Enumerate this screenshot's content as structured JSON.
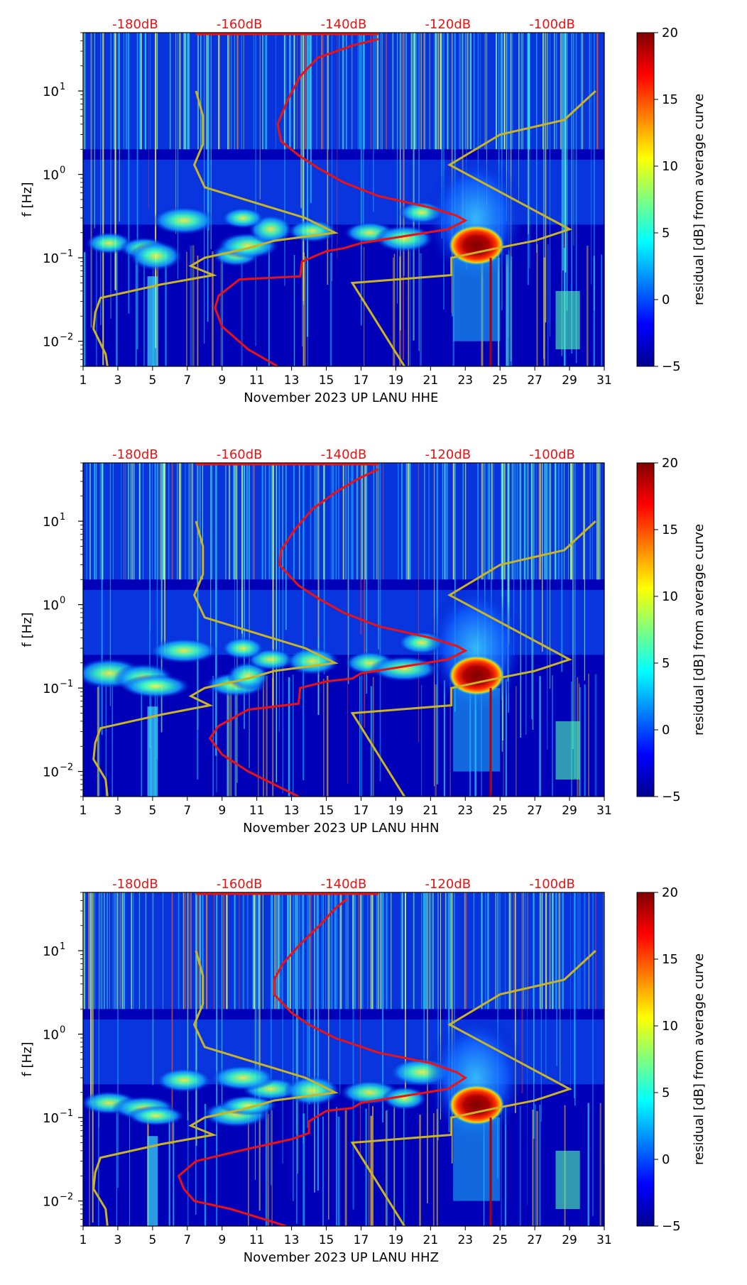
{
  "colors": {
    "psd_curve": "#ee1111",
    "noise_model": "#c8b426",
    "top_label": "#ee1111",
    "axis": "#000000",
    "background_low": "#00008f"
  },
  "chart_data": [
    {
      "type": "heatmap",
      "xlabel": "November 2023 UP LANU  HHE",
      "ylabel": "f [Hz]",
      "x_ticks": [
        "1",
        "3",
        "5",
        "7",
        "9",
        "11",
        "13",
        "15",
        "17",
        "19",
        "21",
        "23",
        "25",
        "27",
        "29",
        "31"
      ],
      "xlim": [
        1,
        31
      ],
      "ylim": [
        0.005,
        50
      ],
      "y_ticks": [
        {
          "value": 0.01,
          "label": "10",
          "exp": "−2"
        },
        {
          "value": 0.1,
          "label": "10",
          "exp": "−1"
        },
        {
          "value": 1,
          "label": "10",
          "exp": "0"
        },
        {
          "value": 10,
          "label": "10",
          "exp": "1"
        }
      ],
      "top_ticks": [
        "-180dB",
        "-160dB",
        "-140dB",
        "-120dB",
        "-100dB"
      ],
      "top_tick_days": [
        4,
        10,
        16,
        22,
        28
      ],
      "colorbar": {
        "label": "residual [dB] from average curve",
        "range": [
          -5,
          20
        ],
        "ticks": [
          "−5",
          "0",
          "5",
          "10",
          "15",
          "20"
        ]
      },
      "hot_spot": {
        "day_start": 22.3,
        "day_end": 25.0,
        "f_min": 0.1,
        "f_max": 0.2
      },
      "psd_curve": [
        [
          12.2,
          0.005
        ],
        [
          10.5,
          0.008
        ],
        [
          9.0,
          0.015
        ],
        [
          8.6,
          0.025
        ],
        [
          8.8,
          0.035
        ],
        [
          10.0,
          0.055
        ],
        [
          13.5,
          0.06
        ],
        [
          13.6,
          0.09
        ],
        [
          15,
          0.12
        ],
        [
          16,
          0.13
        ],
        [
          17,
          0.15
        ],
        [
          22,
          0.22
        ],
        [
          23,
          0.28
        ],
        [
          22.5,
          0.32
        ],
        [
          21,
          0.4
        ],
        [
          18,
          0.55
        ],
        [
          16,
          0.8
        ],
        [
          14.5,
          1.2
        ],
        [
          13.4,
          1.7
        ],
        [
          12.4,
          2.5
        ],
        [
          12.2,
          4
        ],
        [
          12.8,
          8
        ],
        [
          13.5,
          15
        ],
        [
          14.5,
          25
        ],
        [
          16.5,
          35
        ],
        [
          18,
          42
        ]
      ],
      "noise_model": [
        [
          2.4,
          0.005
        ],
        [
          2.3,
          0.007
        ],
        [
          1.6,
          0.014
        ],
        [
          1.7,
          0.022
        ],
        [
          2.0,
          0.033
        ],
        [
          5.5,
          0.048
        ],
        [
          8.5,
          0.062
        ],
        [
          7.2,
          0.08
        ],
        [
          8.0,
          0.1
        ],
        [
          10.5,
          0.13
        ],
        [
          12,
          0.16
        ],
        [
          15.5,
          0.2
        ],
        [
          13.8,
          0.3
        ],
        [
          8.0,
          0.7
        ],
        [
          7.4,
          1.3
        ],
        [
          7.9,
          2.3
        ],
        [
          7.9,
          5
        ],
        [
          7.5,
          10
        ]
      ],
      "noise_model_high": [
        [
          19.5,
          0.005
        ],
        [
          16.5,
          0.05
        ],
        [
          22.2,
          0.062
        ],
        [
          22.2,
          0.1
        ],
        [
          24.8,
          0.13
        ],
        [
          27,
          0.16
        ],
        [
          29,
          0.22
        ],
        [
          22.1,
          1.3
        ],
        [
          25,
          3
        ],
        [
          28.7,
          4.5
        ],
        [
          30.5,
          10
        ]
      ]
    },
    {
      "type": "heatmap",
      "xlabel": "November 2023 UP LANU  HHN",
      "ylabel": "f [Hz]",
      "x_ticks": [
        "1",
        "3",
        "5",
        "7",
        "9",
        "11",
        "13",
        "15",
        "17",
        "19",
        "21",
        "23",
        "25",
        "27",
        "29",
        "31"
      ],
      "xlim": [
        1,
        31
      ],
      "ylim": [
        0.005,
        50
      ],
      "y_ticks": [
        {
          "value": 0.01,
          "label": "10",
          "exp": "−2"
        },
        {
          "value": 0.1,
          "label": "10",
          "exp": "−1"
        },
        {
          "value": 1,
          "label": "10",
          "exp": "0"
        },
        {
          "value": 10,
          "label": "10",
          "exp": "1"
        }
      ],
      "top_ticks": [
        "-180dB",
        "-160dB",
        "-140dB",
        "-120dB",
        "-100dB"
      ],
      "top_tick_days": [
        4,
        10,
        16,
        22,
        28
      ],
      "colorbar": {
        "label": "residual [dB] from average curve",
        "range": [
          -5,
          20
        ],
        "ticks": [
          "−5",
          "0",
          "5",
          "10",
          "15",
          "20"
        ]
      },
      "hot_spot": {
        "day_start": 22.3,
        "day_end": 25.0,
        "f_min": 0.1,
        "f_max": 0.2
      },
      "psd_curve": [
        [
          13.4,
          0.005
        ],
        [
          10.5,
          0.01
        ],
        [
          9.0,
          0.016
        ],
        [
          8.3,
          0.025
        ],
        [
          8.8,
          0.035
        ],
        [
          10.5,
          0.055
        ],
        [
          13.4,
          0.065
        ],
        [
          13.5,
          0.1
        ],
        [
          15,
          0.12
        ],
        [
          16.5,
          0.13
        ],
        [
          17,
          0.15
        ],
        [
          22,
          0.22
        ],
        [
          23,
          0.28
        ],
        [
          22.5,
          0.32
        ],
        [
          21,
          0.4
        ],
        [
          18,
          0.55
        ],
        [
          16,
          0.8
        ],
        [
          14.5,
          1.2
        ],
        [
          13.4,
          1.7
        ],
        [
          12.3,
          3
        ],
        [
          12.4,
          4.5
        ],
        [
          13.2,
          8
        ],
        [
          14.2,
          14
        ],
        [
          15.5,
          22
        ],
        [
          16.8,
          32
        ],
        [
          18,
          42
        ]
      ],
      "noise_model": [
        [
          2.4,
          0.005
        ],
        [
          2.3,
          0.008
        ],
        [
          1.6,
          0.014
        ],
        [
          1.7,
          0.022
        ],
        [
          2.0,
          0.033
        ],
        [
          5.5,
          0.048
        ],
        [
          8.3,
          0.062
        ],
        [
          7.2,
          0.08
        ],
        [
          8.0,
          0.1
        ],
        [
          10.5,
          0.13
        ],
        [
          12,
          0.16
        ],
        [
          15.5,
          0.2
        ],
        [
          13.8,
          0.3
        ],
        [
          8.0,
          0.7
        ],
        [
          7.4,
          1.3
        ],
        [
          7.9,
          2.3
        ],
        [
          7.9,
          5
        ],
        [
          7.5,
          10
        ]
      ],
      "noise_model_high": [
        [
          19.5,
          0.005
        ],
        [
          16.5,
          0.05
        ],
        [
          22.2,
          0.062
        ],
        [
          22.2,
          0.1
        ],
        [
          24.8,
          0.13
        ],
        [
          27,
          0.16
        ],
        [
          29,
          0.22
        ],
        [
          22.1,
          1.3
        ],
        [
          25,
          3
        ],
        [
          28.7,
          4.5
        ],
        [
          30.5,
          10
        ]
      ]
    },
    {
      "type": "heatmap",
      "xlabel": "November 2023 UP LANU  HHZ",
      "ylabel": "f [Hz]",
      "x_ticks": [
        "1",
        "3",
        "5",
        "7",
        "9",
        "11",
        "13",
        "15",
        "17",
        "19",
        "21",
        "23",
        "25",
        "27",
        "29",
        "31"
      ],
      "xlim": [
        1,
        31
      ],
      "ylim": [
        0.005,
        50
      ],
      "y_ticks": [
        {
          "value": 0.01,
          "label": "10",
          "exp": "−2"
        },
        {
          "value": 0.1,
          "label": "10",
          "exp": "−1"
        },
        {
          "value": 1,
          "label": "10",
          "exp": "0"
        },
        {
          "value": 10,
          "label": "10",
          "exp": "1"
        }
      ],
      "top_ticks": [
        "-180dB",
        "-160dB",
        "-140dB",
        "-120dB",
        "-100dB"
      ],
      "top_tick_days": [
        4,
        10,
        16,
        22,
        28
      ],
      "colorbar": {
        "label": "residual [dB] from average curve",
        "range": [
          -5,
          20
        ],
        "ticks": [
          "−5",
          "0",
          "5",
          "10",
          "15",
          "20"
        ]
      },
      "hot_spot": {
        "day_start": 22.3,
        "day_end": 25.0,
        "f_min": 0.1,
        "f_max": 0.2
      },
      "psd_curve": [
        [
          12.7,
          0.005
        ],
        [
          9.5,
          0.008
        ],
        [
          7.4,
          0.01
        ],
        [
          6.8,
          0.014
        ],
        [
          6.5,
          0.02
        ],
        [
          7.5,
          0.03
        ],
        [
          10,
          0.04
        ],
        [
          13,
          0.055
        ],
        [
          14,
          0.065
        ],
        [
          14,
          0.09
        ],
        [
          15,
          0.12
        ],
        [
          16.5,
          0.13
        ],
        [
          17,
          0.15
        ],
        [
          22,
          0.22
        ],
        [
          23,
          0.3
        ],
        [
          22.5,
          0.35
        ],
        [
          21,
          0.45
        ],
        [
          18,
          0.6
        ],
        [
          15.5,
          0.9
        ],
        [
          14,
          1.3
        ],
        [
          13,
          1.8
        ],
        [
          12,
          3
        ],
        [
          12,
          4.5
        ],
        [
          12.5,
          7
        ],
        [
          13.5,
          12
        ],
        [
          14.6,
          20
        ],
        [
          15.5,
          32
        ],
        [
          16.2,
          42
        ]
      ],
      "noise_model": [
        [
          2.4,
          0.005
        ],
        [
          2.3,
          0.008
        ],
        [
          1.6,
          0.014
        ],
        [
          1.7,
          0.022
        ],
        [
          2.0,
          0.033
        ],
        [
          5.5,
          0.048
        ],
        [
          8.5,
          0.062
        ],
        [
          7.2,
          0.08
        ],
        [
          8.0,
          0.1
        ],
        [
          10.5,
          0.13
        ],
        [
          12,
          0.16
        ],
        [
          15.5,
          0.2
        ],
        [
          13.8,
          0.3
        ],
        [
          8.0,
          0.7
        ],
        [
          7.4,
          1.3
        ],
        [
          7.9,
          2.3
        ],
        [
          7.9,
          5
        ],
        [
          7.5,
          10
        ]
      ],
      "noise_model_high": [
        [
          19.5,
          0.005
        ],
        [
          16.5,
          0.05
        ],
        [
          22.2,
          0.062
        ],
        [
          22.2,
          0.1
        ],
        [
          24.8,
          0.13
        ],
        [
          27,
          0.16
        ],
        [
          29,
          0.22
        ],
        [
          22.1,
          1.3
        ],
        [
          25,
          3
        ],
        [
          28.7,
          4.5
        ],
        [
          30.5,
          10
        ]
      ]
    }
  ]
}
